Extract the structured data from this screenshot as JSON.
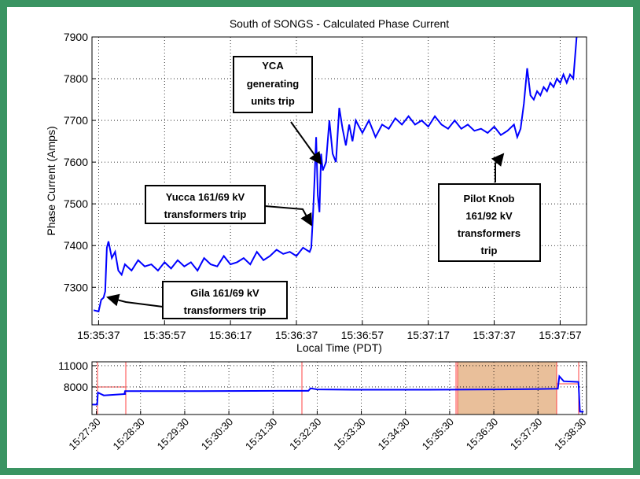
{
  "chart_data": [
    {
      "type": "line",
      "title": "South of SONGS - Calculated Phase Current",
      "xlabel": "Local Time (PDT)",
      "ylabel": "Phase Current (Amps)",
      "xlim": [
        56135,
        56285
      ],
      "ylim": [
        7210,
        7900
      ],
      "xticks": [
        {
          "value": 56137,
          "label": "15:35:37"
        },
        {
          "value": 56157,
          "label": "15:35:57"
        },
        {
          "value": 56177,
          "label": "15:36:17"
        },
        {
          "value": 56197,
          "label": "15:36:37"
        },
        {
          "value": 56217,
          "label": "15:36:57"
        },
        {
          "value": 56237,
          "label": "15:37:17"
        },
        {
          "value": 56257,
          "label": "15:37:37"
        },
        {
          "value": 56277,
          "label": "15:37:57"
        }
      ],
      "yticks": [
        7300,
        7400,
        7500,
        7600,
        7700,
        7800,
        7900
      ],
      "grid": true,
      "series": [
        {
          "color": "#0000ff",
          "x": [
            56135.5,
            56137,
            56137.8,
            56138.5,
            56139,
            56139.5,
            56140,
            56141,
            56142,
            56143,
            56144,
            56145,
            56147,
            56149,
            56151,
            56153,
            56155,
            56157,
            56159,
            56161,
            56163,
            56165,
            56167,
            56169,
            56171,
            56173,
            56175,
            56177,
            56179,
            56181,
            56183,
            56185,
            56187,
            56189,
            56191,
            56193,
            56195,
            56197,
            56199,
            56201,
            56201.5,
            56202,
            56202.5,
            56203,
            56203.5,
            56204,
            56204.5,
            56205,
            56206,
            56207,
            56208,
            56209,
            56210,
            56211,
            56212,
            56213,
            56214,
            56215,
            56217,
            56219,
            56221,
            56223,
            56225,
            56227,
            56229,
            56231,
            56233,
            56235,
            56237,
            56239,
            56241,
            56243,
            56245,
            56247,
            56249,
            56251,
            56253,
            56255,
            56257,
            56259,
            56261,
            56263,
            56264,
            56265,
            56266,
            56267,
            56268,
            56269,
            56270,
            56271,
            56272,
            56273,
            56274,
            56275,
            56276,
            56277,
            56278,
            56279,
            56280,
            56281,
            56282
          ],
          "values": [
            7245,
            7242,
            7270,
            7275,
            7290,
            7395,
            7410,
            7370,
            7385,
            7340,
            7330,
            7355,
            7340,
            7365,
            7350,
            7355,
            7340,
            7360,
            7345,
            7365,
            7350,
            7360,
            7340,
            7370,
            7355,
            7350,
            7375,
            7355,
            7360,
            7370,
            7355,
            7385,
            7365,
            7375,
            7390,
            7380,
            7385,
            7375,
            7395,
            7385,
            7395,
            7470,
            7560,
            7660,
            7520,
            7480,
            7620,
            7580,
            7600,
            7700,
            7620,
            7600,
            7730,
            7680,
            7640,
            7690,
            7650,
            7700,
            7670,
            7700,
            7660,
            7690,
            7680,
            7705,
            7690,
            7710,
            7690,
            7700,
            7685,
            7710,
            7690,
            7680,
            7700,
            7680,
            7690,
            7675,
            7680,
            7670,
            7685,
            7665,
            7675,
            7690,
            7660,
            7680,
            7740,
            7825,
            7760,
            7750,
            7770,
            7760,
            7780,
            7770,
            7790,
            7780,
            7800,
            7790,
            7810,
            7790,
            7810,
            7800,
            7900
          ]
        }
      ],
      "annotations": [
        {
          "lines": [
            "YCA",
            "generating",
            "units trip"
          ]
        },
        {
          "lines": [
            "Yucca 161/69 kV",
            "transformers trip"
          ]
        },
        {
          "lines": [
            "Gila 161/69 kV",
            "transformers trip"
          ]
        },
        {
          "lines": [
            "Pilot Knob",
            "161/92 kV",
            "transformers",
            "trip"
          ]
        }
      ]
    },
    {
      "type": "line",
      "xlim": [
        55644,
        56316
      ],
      "ylim": [
        4100,
        11550
      ],
      "xticks": [
        {
          "value": 55650,
          "label": "15:27:30"
        },
        {
          "value": 55710,
          "label": "15:28:30"
        },
        {
          "value": 55770,
          "label": "15:29:30"
        },
        {
          "value": 55830,
          "label": "15:30:30"
        },
        {
          "value": 55890,
          "label": "15:31:30"
        },
        {
          "value": 55950,
          "label": "15:32:30"
        },
        {
          "value": 56010,
          "label": "15:33:30"
        },
        {
          "value": 56070,
          "label": "15:34:30"
        },
        {
          "value": 56130,
          "label": "15:35:30"
        },
        {
          "value": 56190,
          "label": "15:36:30"
        },
        {
          "value": 56250,
          "label": "15:37:30"
        },
        {
          "value": 56310,
          "label": "15:38:30"
        }
      ],
      "yticks": [
        8000,
        11000
      ],
      "grid": true,
      "series": [
        {
          "color": "#0000ff",
          "x": [
            55644,
            55651,
            55652,
            55660,
            55690,
            55688,
            55689,
            55760,
            55900,
            55938,
            55941,
            55950,
            56000,
            56100,
            56200,
            56250,
            56277,
            56279,
            56285,
            56305,
            56307,
            56312
          ],
          "values": [
            5500,
            5500,
            7200,
            6800,
            7000,
            7000,
            7400,
            7400,
            7450,
            7450,
            7800,
            7650,
            7600,
            7600,
            7650,
            7700,
            7750,
            9500,
            8800,
            8700,
            4500,
            4500
          ]
        }
      ]
    }
  ]
}
